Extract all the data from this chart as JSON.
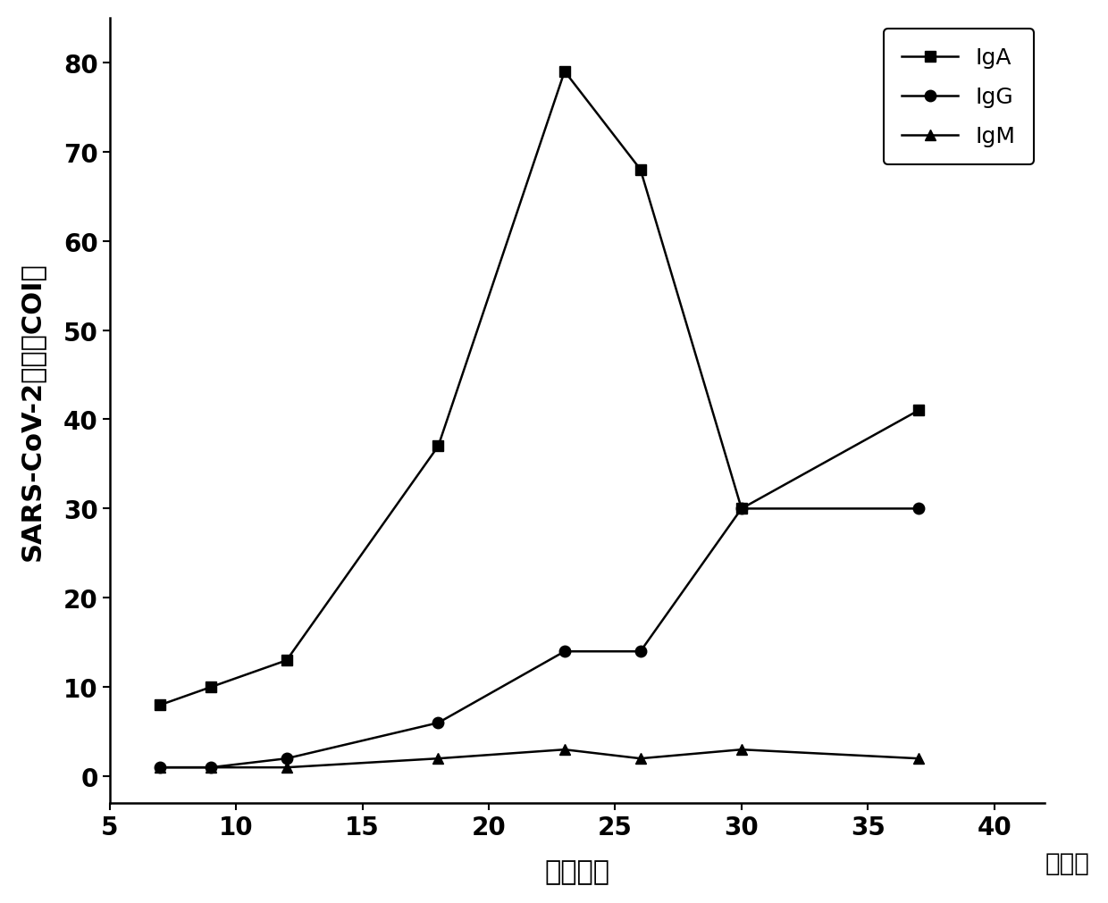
{
  "IgA_x": [
    7,
    9,
    12,
    18,
    23,
    26,
    30,
    37
  ],
  "IgA_y": [
    8,
    10,
    13,
    37,
    79,
    68,
    30,
    41
  ],
  "IgG_x": [
    7,
    9,
    12,
    18,
    23,
    26,
    30,
    37
  ],
  "IgG_y": [
    1,
    1,
    2,
    6,
    14,
    14,
    30,
    30
  ],
  "IgM_x": [
    7,
    9,
    12,
    18,
    23,
    26,
    30,
    37
  ],
  "IgM_y": [
    1,
    1,
    1,
    2,
    3,
    2,
    3,
    2
  ],
  "xlabel": "发病时间",
  "ylabel": "SARS-CoV-2抗体（COI）",
  "xlabel_suffix": "（天）",
  "xlim": [
    5,
    42
  ],
  "ylim": [
    -3,
    85
  ],
  "xticks": [
    5,
    10,
    15,
    20,
    25,
    30,
    35,
    40
  ],
  "yticks": [
    0,
    10,
    20,
    30,
    40,
    50,
    60,
    70,
    80
  ],
  "legend_labels": [
    "IgA",
    "IgG",
    "IgM"
  ],
  "line_color": "#000000",
  "bg_color": "#ffffff",
  "marker_IgA": "s",
  "marker_IgG": "o",
  "marker_IgM": "^",
  "markersize": 9,
  "linewidth": 1.8,
  "label_fontsize": 22,
  "tick_fontsize": 20,
  "legend_fontsize": 18
}
